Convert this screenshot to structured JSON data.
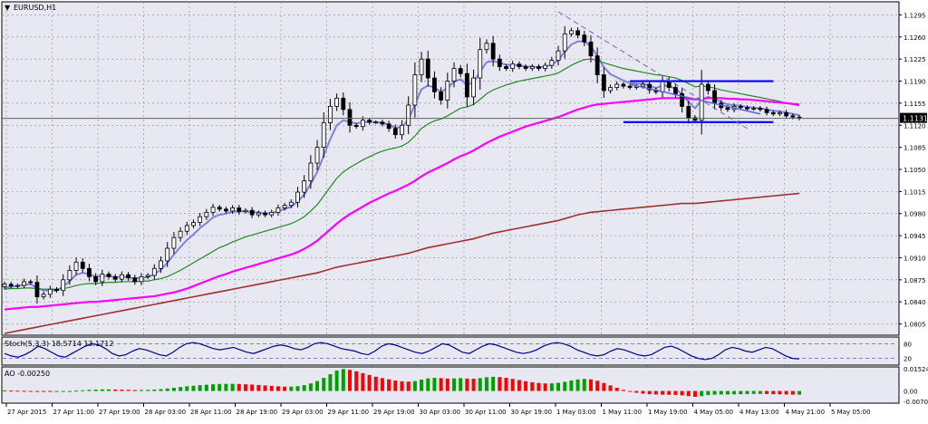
{
  "window": {
    "symbol_label": "EURUSD,H1",
    "menu_icon": "triangle-down-icon"
  },
  "colors": {
    "background": "#e8e8f2",
    "grid": "#8a8a8a",
    "candle": "#000000",
    "ema_fast": "#8080e0",
    "ema_mid": "#208a20",
    "ema_slow": "#ff00ff",
    "ema_long": "#a03030",
    "trend_line": "#0000ff",
    "stoch_main": "#000080",
    "ao_up": "#00a000",
    "ao_down": "#ff0000"
  },
  "price_axis": {
    "ticks": [
      "1.1295",
      "1.1260",
      "1.1225",
      "1.1190",
      "1.1155",
      "1.1120",
      "1.1085",
      "1.1050",
      "1.1015",
      "1.0980",
      "1.0945",
      "1.0910",
      "1.0875",
      "1.0840",
      "1.0805"
    ],
    "current_price": "1.1131"
  },
  "time_axis": {
    "ticks": [
      "27 Apr 2015",
      "27 Apr 11:00",
      "27 Apr 19:00",
      "28 Apr 03:00",
      "28 Apr 11:00",
      "28 Apr 19:00",
      "29 Apr 03:00",
      "29 Apr 11:00",
      "29 Apr 19:00",
      "30 Apr 03:00",
      "30 Apr 11:00",
      "30 Apr 19:00",
      "1 May 03:00",
      "1 May 11:00",
      "1 May 19:00",
      "4 May 05:00",
      "4 May 13:00",
      "4 May 21:00",
      "5 May 05:00"
    ]
  },
  "stoch_panel": {
    "label": "Stoch(5,3,3) 18.5714 13.1712",
    "ticks": [
      "80",
      "20"
    ]
  },
  "ao_panel": {
    "label": "AO -0.00250",
    "ticks": [
      "0.01524",
      "0.00",
      "-0.00709"
    ]
  },
  "chart_data": {
    "type": "line",
    "title": "EURUSD,H1",
    "xlabel": "",
    "ylabel": "",
    "ylim": [
      1.079,
      1.131
    ],
    "grid": true,
    "series": [
      {
        "values": [
          1.0868,
          1.0865,
          1.0866,
          1.0872,
          1.0871,
          1.0848,
          1.0852,
          1.086,
          1.0858,
          1.0875,
          1.089,
          1.0903,
          1.0893,
          1.088,
          1.0872,
          1.0884,
          1.088,
          1.0876,
          1.0883,
          1.0878,
          1.0872,
          1.088,
          1.0882,
          1.0893,
          1.0905,
          1.0925,
          1.0942,
          1.0952,
          1.0961,
          1.0966,
          1.0975,
          1.0982,
          1.099,
          1.0987,
          1.0984,
          1.0989,
          1.0983,
          1.0985,
          1.0978,
          1.0981,
          1.0978,
          1.0982,
          1.0989,
          1.0993,
          1.0998,
          1.1014,
          1.1032,
          1.106,
          1.1085,
          1.1124,
          1.115,
          1.1163,
          1.1145,
          1.112,
          1.1118,
          1.1128,
          1.1125,
          1.1125,
          1.1122,
          1.1115,
          1.1105,
          1.112,
          1.1152,
          1.12,
          1.1225,
          1.1195,
          1.1173,
          1.116,
          1.119,
          1.121,
          1.1202,
          1.1165,
          1.1195,
          1.124,
          1.125,
          1.1225,
          1.1213,
          1.121,
          1.1217,
          1.1213,
          1.121,
          1.1213,
          1.121,
          1.1215,
          1.1223,
          1.1238,
          1.1265,
          1.127,
          1.1263,
          1.1252,
          1.123,
          1.12,
          1.1175,
          1.118,
          1.1185,
          1.1182,
          1.118,
          1.1182,
          1.1185,
          1.1176,
          1.1173,
          1.119,
          1.118,
          1.117,
          1.115,
          1.1132,
          1.1128,
          1.1185,
          1.1175,
          1.1155,
          1.1148,
          1.1145,
          1.115,
          1.1148,
          1.1146,
          1.1147,
          1.1145,
          1.114,
          1.1138,
          1.114,
          1.1135,
          1.1133,
          1.1131
        ]
      },
      {
        "values": [
          1.0862,
          1.0864,
          1.0865,
          1.0867,
          1.0868,
          1.0862,
          1.0858,
          1.0858,
          1.0858,
          1.0864,
          1.0873,
          1.0883,
          1.0886,
          1.0884,
          1.088,
          1.0881,
          1.0881,
          1.0879,
          1.088,
          1.0879,
          1.0877,
          1.0878,
          1.0879,
          1.0884,
          1.0891,
          1.0902,
          1.0915,
          1.0927,
          1.0938,
          1.0947,
          1.0957,
          1.0965,
          1.0974,
          1.0978,
          1.098,
          1.0983,
          1.0983,
          1.0984,
          1.0982,
          1.0982,
          1.098,
          1.0981,
          1.0984,
          1.0987,
          1.0991,
          1.0999,
          1.101,
          1.1027,
          1.1046,
          1.1072,
          1.1098,
          1.112,
          1.1128,
          1.1125,
          1.1123,
          1.1125,
          1.1125,
          1.1125,
          1.1124,
          1.1121,
          1.1116,
          1.1117,
          1.1129,
          1.1153,
          1.1177,
          1.1183,
          1.118,
          1.1173,
          1.1179,
          1.1189,
          1.1193,
          1.1184,
          1.1188,
          1.1205,
          1.122,
          1.1222,
          1.1219,
          1.1216,
          1.1216,
          1.1215,
          1.1213,
          1.1213,
          1.1212,
          1.1213,
          1.1216,
          1.1223,
          1.1237,
          1.1248,
          1.1253,
          1.1253,
          1.1245,
          1.123,
          1.1212,
          1.1201,
          1.1196,
          1.1191,
          1.1187,
          1.1186,
          1.1186,
          1.1183,
          1.1179,
          1.1183,
          1.1182,
          1.1178,
          1.1169,
          1.1157,
          1.1147,
          1.116,
          1.1165,
          1.1162,
          1.1157,
          1.1153,
          1.1152,
          1.1151,
          1.1149,
          1.1148,
          1.1147,
          1.1145,
          1.1143,
          1.1142,
          1.114,
          1.1138,
          1.1136
        ]
      },
      {
        "values": [
          1.086,
          1.0861,
          1.0861,
          1.0862,
          1.0862,
          1.0861,
          1.086,
          1.086,
          1.086,
          1.0861,
          1.0863,
          1.0866,
          1.0868,
          1.0869,
          1.0869,
          1.087,
          1.0871,
          1.0871,
          1.0872,
          1.0872,
          1.0872,
          1.0873,
          1.0873,
          1.0875,
          1.0877,
          1.088,
          1.0885,
          1.089,
          1.0896,
          1.0902,
          1.0908,
          1.0914,
          1.092,
          1.0926,
          1.093,
          1.0935,
          1.0939,
          1.0943,
          1.0946,
          1.0949,
          1.0952,
          1.0955,
          1.0958,
          1.0961,
          1.0964,
          1.0969,
          1.0975,
          1.0984,
          1.0994,
          1.1008,
          1.1022,
          1.1036,
          1.1046,
          1.1053,
          1.1059,
          1.1065,
          1.107,
          1.1075,
          1.1079,
          1.1082,
          1.1084,
          1.1087,
          1.1093,
          1.1103,
          1.1115,
          1.1122,
          1.1127,
          1.113,
          1.1135,
          1.1141,
          1.1147,
          1.1149,
          1.1153,
          1.1161,
          1.117,
          1.1176,
          1.118,
          1.1184,
          1.1187,
          1.119,
          1.1192,
          1.1194,
          1.1196,
          1.1198,
          1.12,
          1.1203,
          1.1209,
          1.1215,
          1.122,
          1.1224,
          1.1225,
          1.1223,
          1.1219,
          1.1216,
          1.1213,
          1.121,
          1.1208,
          1.1206,
          1.1204,
          1.1202,
          1.12,
          1.1199,
          1.1197,
          1.1195,
          1.1191,
          1.1186,
          1.1181,
          1.1182,
          1.1181,
          1.1179,
          1.1176,
          1.1174,
          1.1172,
          1.117,
          1.1168,
          1.1166,
          1.1164,
          1.1162,
          1.116,
          1.1158,
          1.1155,
          1.1153,
          1.1151
        ]
      },
      {
        "values": [
          1.0828,
          1.0829,
          1.083,
          1.0831,
          1.0832,
          1.0832,
          1.0833,
          1.0834,
          1.0835,
          1.0836,
          1.0837,
          1.0838,
          1.0839,
          1.084,
          1.084,
          1.0841,
          1.0842,
          1.0843,
          1.0844,
          1.0845,
          1.0846,
          1.0847,
          1.0848,
          1.0849,
          1.0851,
          1.0853,
          1.0855,
          1.0858,
          1.0861,
          1.0865,
          1.0869,
          1.0873,
          1.0877,
          1.0881,
          1.0884,
          1.0888,
          1.0891,
          1.0894,
          1.0897,
          1.09,
          1.0903,
          1.0906,
          1.0909,
          1.0912,
          1.0915,
          1.0919,
          1.0924,
          1.093,
          1.0937,
          1.0946,
          1.0955,
          1.0964,
          1.0972,
          1.0979,
          1.0985,
          1.0991,
          1.0997,
          1.1002,
          1.1007,
          1.1012,
          1.1016,
          1.1021,
          1.1026,
          1.1032,
          1.1039,
          1.1045,
          1.105,
          1.1055,
          1.106,
          1.1066,
          1.1071,
          1.1075,
          1.108,
          1.1086,
          1.1092,
          1.1097,
          1.1102,
          1.1106,
          1.111,
          1.1114,
          1.1118,
          1.1121,
          1.1124,
          1.1127,
          1.113,
          1.1133,
          1.1137,
          1.1141,
          1.1145,
          1.1148,
          1.1151,
          1.1153,
          1.1154,
          1.1155,
          1.1156,
          1.1157,
          1.1158,
          1.1159,
          1.116,
          1.1161,
          1.1162,
          1.1163,
          1.1163,
          1.1163,
          1.1163,
          1.1162,
          1.1161,
          1.1162,
          1.1163,
          1.1163,
          1.1163,
          1.1162,
          1.1162,
          1.1161,
          1.1161,
          1.116,
          1.1159,
          1.1158,
          1.1157,
          1.1156,
          1.1155,
          1.1154,
          1.1153
        ]
      },
      {
        "values": [
          1.079,
          1.0792,
          1.0794,
          1.0796,
          1.0798,
          1.08,
          1.0802,
          1.0804,
          1.0806,
          1.0808,
          1.081,
          1.0812,
          1.0814,
          1.0816,
          1.0818,
          1.082,
          1.0822,
          1.0824,
          1.0826,
          1.0828,
          1.083,
          1.0832,
          1.0834,
          1.0836,
          1.0838,
          1.084,
          1.0842,
          1.0844,
          1.0846,
          1.0848,
          1.085,
          1.0852,
          1.0854,
          1.0856,
          1.0858,
          1.086,
          1.0862,
          1.0864,
          1.0866,
          1.0868,
          1.087,
          1.0872,
          1.0874,
          1.0876,
          1.0878,
          1.088,
          1.0882,
          1.0884,
          1.0886,
          1.0889,
          1.0892,
          1.0895,
          1.0897,
          1.0899,
          1.0901,
          1.0903,
          1.0905,
          1.0907,
          1.0909,
          1.0911,
          1.0913,
          1.0915,
          1.0917,
          1.092,
          1.0923,
          1.0926,
          1.0928,
          1.093,
          1.0932,
          1.0934,
          1.0936,
          1.0938,
          1.094,
          1.0943,
          1.0946,
          1.0949,
          1.0951,
          1.0953,
          1.0955,
          1.0957,
          1.0959,
          1.0961,
          1.0963,
          1.0965,
          1.0967,
          1.0969,
          1.0972,
          1.0975,
          1.0978,
          1.098,
          1.0982,
          1.0983,
          1.0984,
          1.0985,
          1.0986,
          1.0987,
          1.0988,
          1.0989,
          1.099,
          1.0991,
          1.0992,
          1.0993,
          1.0994,
          1.0995,
          1.0996,
          1.0996,
          1.0996,
          1.0997,
          1.0998,
          1.0999,
          1.1,
          1.1001,
          1.1002,
          1.1003,
          1.1004,
          1.1005,
          1.1006,
          1.1007,
          1.1008,
          1.1009,
          1.101,
          1.1011,
          1.1012
        ]
      }
    ],
    "trend_lines": [
      {
        "type": "support",
        "from": [
          95,
          1.1125
        ],
        "to": [
          118,
          1.1125
        ]
      },
      {
        "type": "resistance",
        "from": [
          96,
          1.119
        ],
        "to": [
          118,
          1.119
        ]
      },
      {
        "type": "channel",
        "from": [
          96,
          1.1185
        ],
        "to": [
          116,
          1.1138
        ]
      },
      {
        "type": "dashed",
        "from": [
          85,
          1.13
        ],
        "to": [
          114,
          1.1115
        ]
      }
    ],
    "stochastic": {
      "ylim": [
        0,
        100
      ],
      "levels": [
        80,
        20
      ],
      "main": [
        40,
        30,
        25,
        35,
        50,
        70,
        60,
        45,
        30,
        25,
        40,
        55,
        70,
        80,
        75,
        60,
        40,
        30,
        35,
        50,
        60,
        55,
        45,
        35,
        30,
        45,
        65,
        80,
        85,
        80,
        70,
        60,
        55,
        60,
        65,
        55,
        45,
        40,
        50,
        60,
        70,
        75,
        70,
        60,
        55,
        65,
        80,
        85,
        80,
        70,
        60,
        55,
        50,
        40,
        35,
        50,
        70,
        80,
        75,
        65,
        55,
        45,
        40,
        50,
        65,
        80,
        75,
        60,
        45,
        40,
        55,
        70,
        80,
        75,
        65,
        55,
        45,
        40,
        45,
        55,
        70,
        80,
        85,
        80,
        70,
        55,
        45,
        35,
        30,
        35,
        50,
        60,
        55,
        45,
        35,
        30,
        35,
        50,
        65,
        70,
        60,
        45,
        30,
        20,
        15,
        20,
        35,
        55,
        65,
        60,
        50,
        45,
        55,
        65,
        60,
        45,
        30,
        20,
        18
      ]
    },
    "awesome_oscillator": {
      "ylim": [
        -0.00709,
        0.01524
      ],
      "values": [
        0.0004,
        0.0003,
        0.0002,
        0.0001,
        0.0,
        -0.0002,
        -0.0003,
        -0.0004,
        -0.0004,
        -0.0003,
        -0.0001,
        0.0002,
        0.0005,
        0.0008,
        0.001,
        0.0011,
        0.0011,
        0.001,
        0.0009,
        0.0008,
        0.0007,
        0.0007,
        0.0008,
        0.001,
        0.0013,
        0.0017,
        0.0022,
        0.0027,
        0.0032,
        0.0036,
        0.004,
        0.0043,
        0.0046,
        0.0048,
        0.0049,
        0.0049,
        0.0048,
        0.0046,
        0.0044,
        0.0041,
        0.0038,
        0.0035,
        0.0032,
        0.003,
        0.003,
        0.0033,
        0.004,
        0.0052,
        0.0068,
        0.009,
        0.0115,
        0.014,
        0.015,
        0.0145,
        0.0135,
        0.0122,
        0.011,
        0.0098,
        0.0088,
        0.008,
        0.0072,
        0.0066,
        0.0064,
        0.0068,
        0.0078,
        0.0086,
        0.009,
        0.0088,
        0.0085,
        0.0086,
        0.0088,
        0.0085,
        0.0084,
        0.0088,
        0.0094,
        0.0097,
        0.0095,
        0.009,
        0.0083,
        0.0075,
        0.0067,
        0.006,
        0.0055,
        0.0052,
        0.0052,
        0.0056,
        0.0063,
        0.0072,
        0.0079,
        0.0083,
        0.008,
        0.007,
        0.0055,
        0.0038,
        0.0022,
        0.0008,
        -0.0004,
        -0.0012,
        -0.0018,
        -0.0022,
        -0.0024,
        -0.0025,
        -0.0026,
        -0.0027,
        -0.003,
        -0.0035,
        -0.004,
        -0.0035,
        -0.0028,
        -0.0025,
        -0.0024,
        -0.0024,
        -0.0023,
        -0.0022,
        -0.0021,
        -0.002,
        -0.002,
        -0.0021,
        -0.0022,
        -0.0023,
        -0.0024,
        -0.0025,
        -0.0025
      ]
    }
  }
}
